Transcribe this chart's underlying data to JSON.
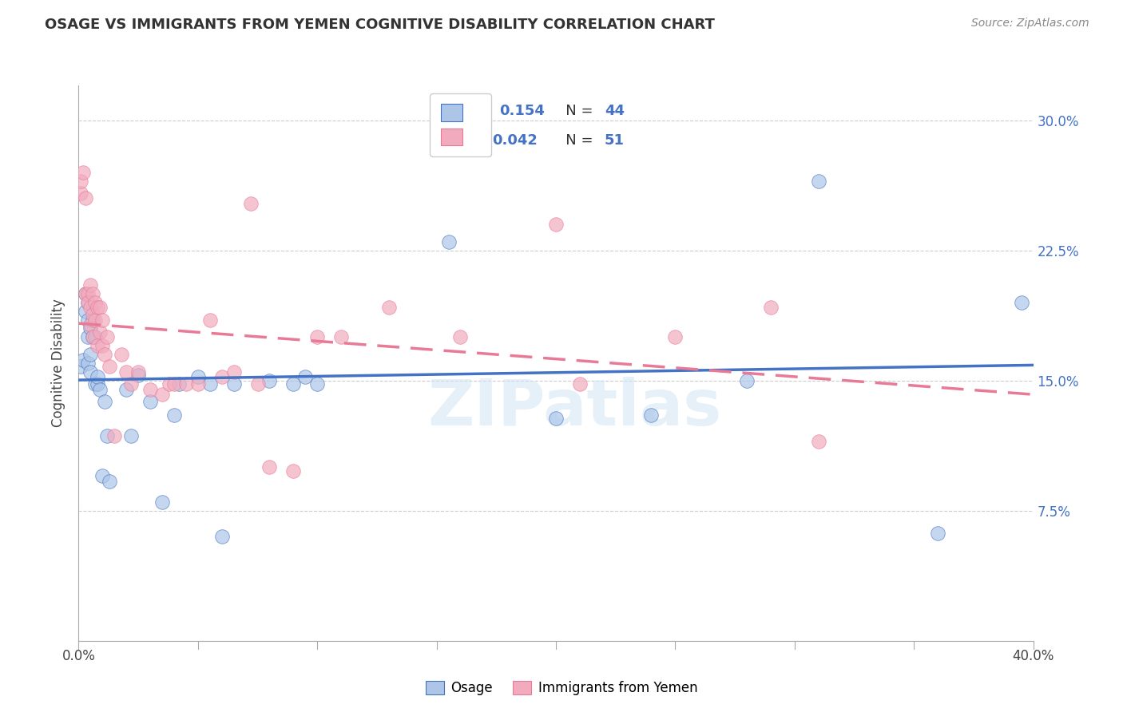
{
  "title": "OSAGE VS IMMIGRANTS FROM YEMEN COGNITIVE DISABILITY CORRELATION CHART",
  "source": "Source: ZipAtlas.com",
  "ylabel": "Cognitive Disability",
  "yticks": [
    0.0,
    0.075,
    0.15,
    0.225,
    0.3
  ],
  "ytick_labels": [
    "",
    "7.5%",
    "15.0%",
    "22.5%",
    "30.0%"
  ],
  "xlim": [
    0.0,
    0.4
  ],
  "ylim": [
    0.0,
    0.32
  ],
  "color_blue": "#adc6e8",
  "color_pink": "#f2abbe",
  "line_blue": "#4472c4",
  "line_pink": "#e87a96",
  "legend_label1": "Osage",
  "legend_label2": "Immigrants from Yemen",
  "watermark": "ZIPatlas",
  "blue_x": [
    0.001,
    0.002,
    0.003,
    0.003,
    0.004,
    0.004,
    0.004,
    0.004,
    0.005,
    0.005,
    0.005,
    0.006,
    0.006,
    0.007,
    0.007,
    0.008,
    0.008,
    0.009,
    0.01,
    0.011,
    0.012,
    0.013,
    0.02,
    0.022,
    0.025,
    0.03,
    0.035,
    0.04,
    0.042,
    0.05,
    0.055,
    0.06,
    0.065,
    0.08,
    0.09,
    0.095,
    0.1,
    0.155,
    0.2,
    0.24,
    0.28,
    0.31,
    0.36,
    0.395
  ],
  "blue_y": [
    0.158,
    0.162,
    0.19,
    0.2,
    0.185,
    0.195,
    0.16,
    0.175,
    0.165,
    0.18,
    0.155,
    0.175,
    0.185,
    0.175,
    0.148,
    0.148,
    0.152,
    0.145,
    0.095,
    0.138,
    0.118,
    0.092,
    0.145,
    0.118,
    0.153,
    0.138,
    0.08,
    0.13,
    0.148,
    0.152,
    0.148,
    0.06,
    0.148,
    0.15,
    0.148,
    0.152,
    0.148,
    0.23,
    0.128,
    0.13,
    0.15,
    0.265,
    0.062,
    0.195
  ],
  "pink_x": [
    0.001,
    0.001,
    0.002,
    0.003,
    0.003,
    0.004,
    0.004,
    0.005,
    0.005,
    0.005,
    0.006,
    0.006,
    0.006,
    0.007,
    0.007,
    0.008,
    0.008,
    0.009,
    0.009,
    0.01,
    0.01,
    0.011,
    0.012,
    0.013,
    0.015,
    0.018,
    0.02,
    0.022,
    0.025,
    0.03,
    0.035,
    0.038,
    0.04,
    0.045,
    0.05,
    0.055,
    0.06,
    0.065,
    0.072,
    0.075,
    0.08,
    0.09,
    0.1,
    0.11,
    0.13,
    0.16,
    0.2,
    0.21,
    0.25,
    0.29,
    0.31
  ],
  "pink_y": [
    0.258,
    0.265,
    0.27,
    0.2,
    0.255,
    0.2,
    0.195,
    0.205,
    0.192,
    0.182,
    0.2,
    0.188,
    0.175,
    0.195,
    0.185,
    0.192,
    0.17,
    0.192,
    0.178,
    0.185,
    0.17,
    0.165,
    0.175,
    0.158,
    0.118,
    0.165,
    0.155,
    0.148,
    0.155,
    0.145,
    0.142,
    0.148,
    0.148,
    0.148,
    0.148,
    0.185,
    0.152,
    0.155,
    0.252,
    0.148,
    0.1,
    0.098,
    0.175,
    0.175,
    0.192,
    0.175,
    0.24,
    0.148,
    0.175,
    0.192,
    0.115
  ]
}
